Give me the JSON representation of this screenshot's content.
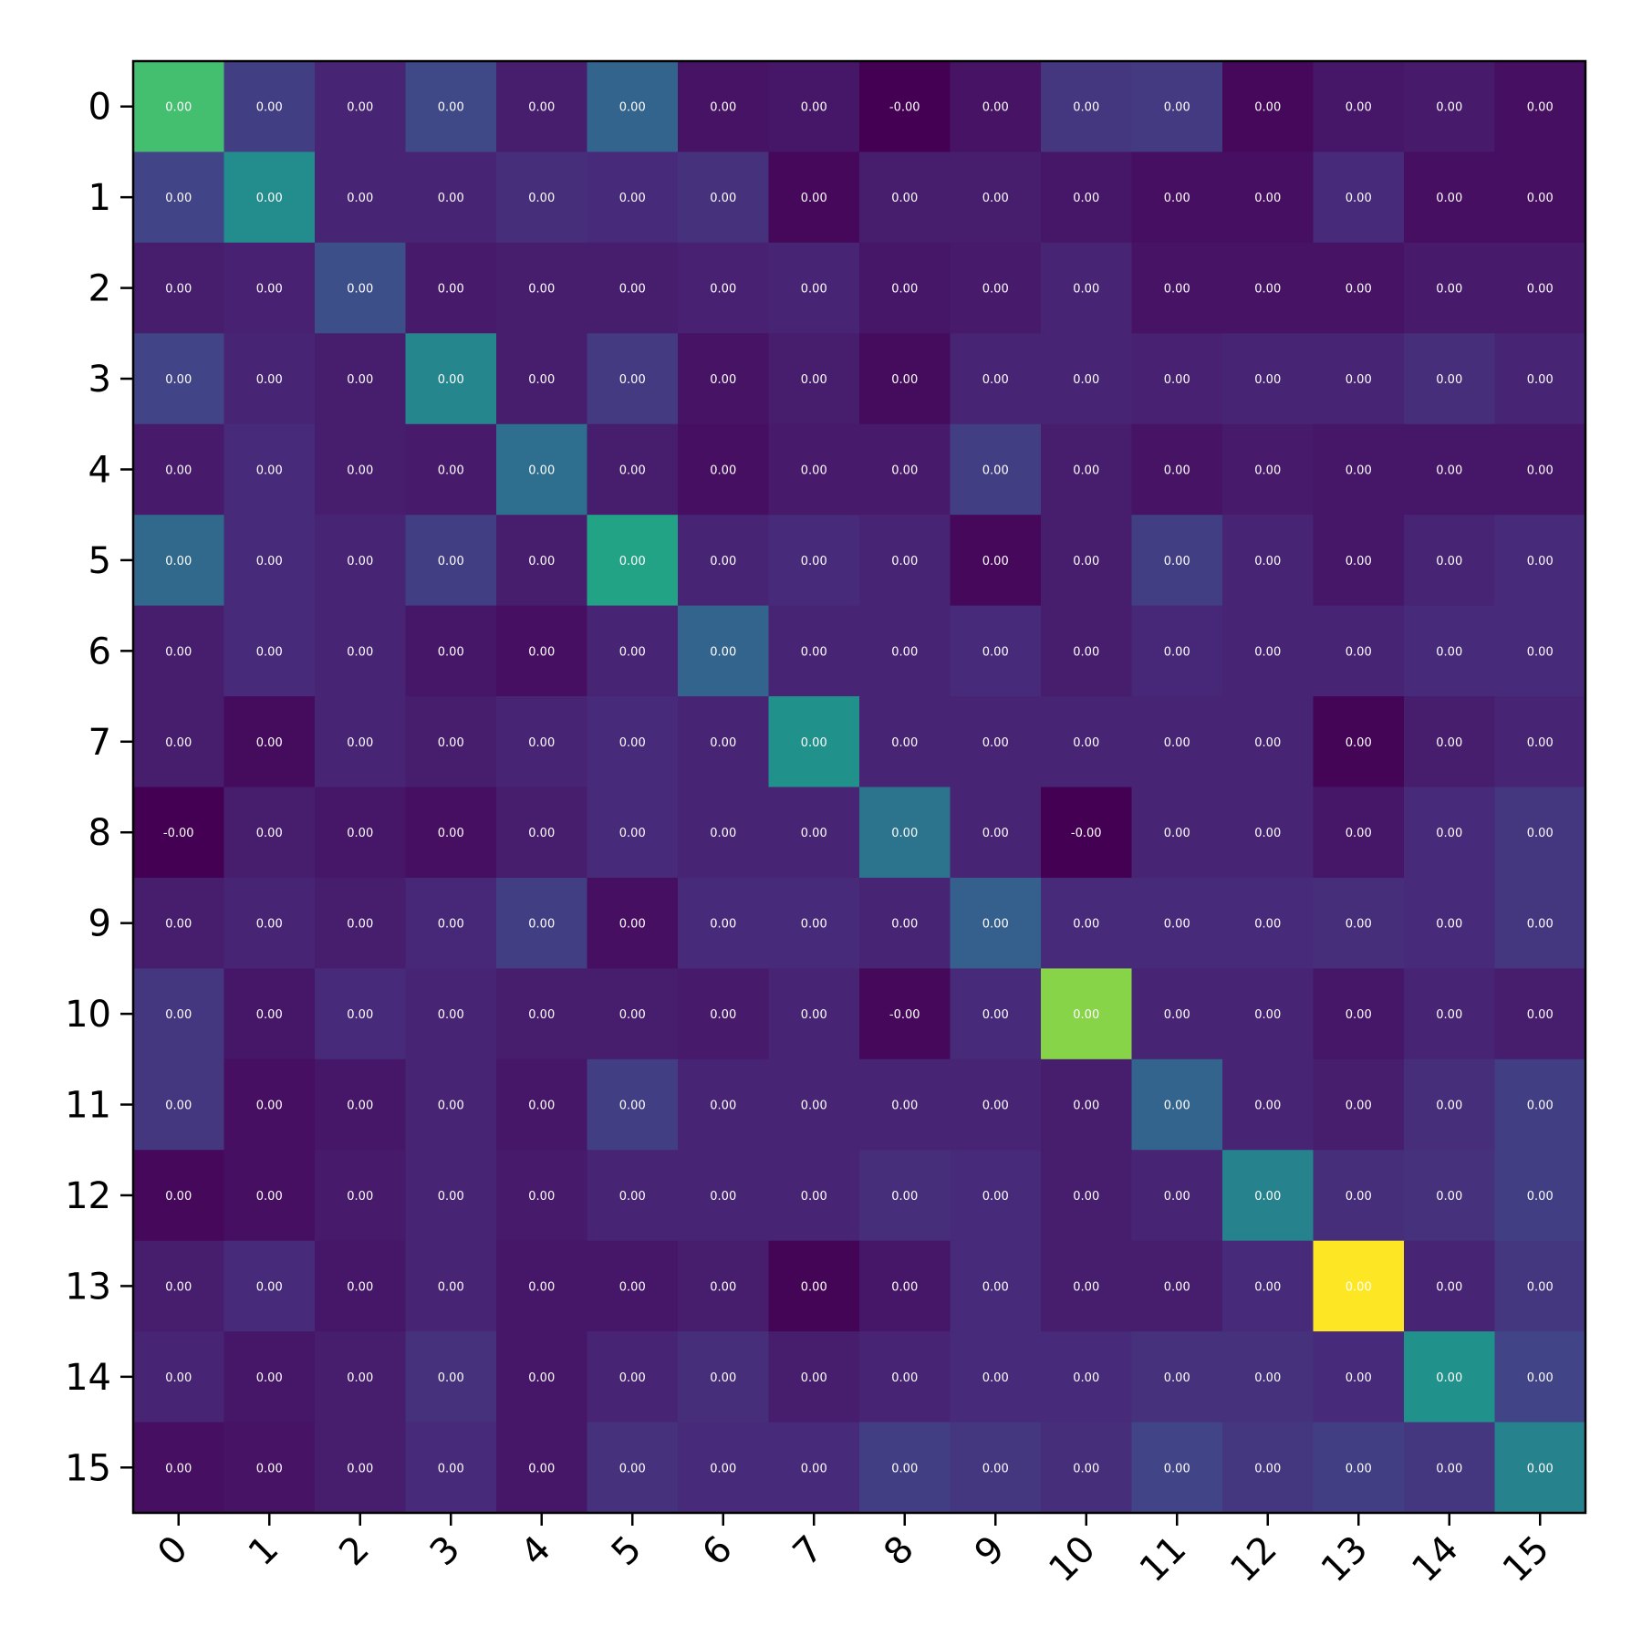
{
  "chart_data": {
    "type": "heatmap",
    "colormap": "viridis",
    "title": "",
    "xlabel": "",
    "ylabel": "",
    "grid": false,
    "x_categories": [
      "0",
      "1",
      "2",
      "3",
      "4",
      "5",
      "6",
      "7",
      "8",
      "9",
      "10",
      "11",
      "12",
      "13",
      "14",
      "15"
    ],
    "y_categories": [
      "0",
      "1",
      "2",
      "3",
      "4",
      "5",
      "6",
      "7",
      "8",
      "9",
      "10",
      "11",
      "12",
      "13",
      "14",
      "15"
    ],
    "value_range": [
      0,
      1
    ],
    "intensity": [
      [
        0.7,
        0.18,
        0.1,
        0.22,
        0.08,
        0.32,
        0.05,
        0.06,
        0.0,
        0.05,
        0.16,
        0.17,
        0.02,
        0.06,
        0.07,
        0.04
      ],
      [
        0.2,
        0.48,
        0.1,
        0.1,
        0.13,
        0.12,
        0.14,
        0.02,
        0.08,
        0.08,
        0.06,
        0.04,
        0.04,
        0.12,
        0.04,
        0.04
      ],
      [
        0.08,
        0.09,
        0.24,
        0.07,
        0.08,
        0.08,
        0.09,
        0.1,
        0.06,
        0.07,
        0.1,
        0.05,
        0.05,
        0.05,
        0.07,
        0.07
      ],
      [
        0.2,
        0.1,
        0.08,
        0.46,
        0.08,
        0.17,
        0.05,
        0.08,
        0.03,
        0.1,
        0.1,
        0.09,
        0.1,
        0.1,
        0.13,
        0.1
      ],
      [
        0.07,
        0.12,
        0.08,
        0.07,
        0.36,
        0.08,
        0.04,
        0.07,
        0.07,
        0.18,
        0.08,
        0.05,
        0.07,
        0.06,
        0.06,
        0.06
      ],
      [
        0.34,
        0.12,
        0.1,
        0.18,
        0.08,
        0.58,
        0.1,
        0.12,
        0.1,
        0.02,
        0.08,
        0.18,
        0.1,
        0.06,
        0.1,
        0.12
      ],
      [
        0.08,
        0.12,
        0.1,
        0.06,
        0.04,
        0.1,
        0.32,
        0.1,
        0.1,
        0.12,
        0.08,
        0.11,
        0.1,
        0.1,
        0.12,
        0.12
      ],
      [
        0.08,
        0.03,
        0.1,
        0.08,
        0.1,
        0.12,
        0.1,
        0.5,
        0.1,
        0.1,
        0.1,
        0.1,
        0.1,
        0.01,
        0.08,
        0.1
      ],
      [
        0.0,
        0.08,
        0.06,
        0.04,
        0.08,
        0.12,
        0.1,
        0.1,
        0.38,
        0.1,
        0.0,
        0.1,
        0.1,
        0.06,
        0.12,
        0.16
      ],
      [
        0.08,
        0.1,
        0.08,
        0.11,
        0.18,
        0.04,
        0.12,
        0.12,
        0.1,
        0.3,
        0.12,
        0.12,
        0.12,
        0.13,
        0.12,
        0.16
      ],
      [
        0.16,
        0.06,
        0.12,
        0.1,
        0.08,
        0.08,
        0.07,
        0.1,
        0.02,
        0.12,
        0.82,
        0.1,
        0.1,
        0.06,
        0.1,
        0.08
      ],
      [
        0.16,
        0.04,
        0.06,
        0.1,
        0.06,
        0.18,
        0.1,
        0.1,
        0.1,
        0.1,
        0.08,
        0.32,
        0.1,
        0.08,
        0.13,
        0.18
      ],
      [
        0.02,
        0.04,
        0.07,
        0.1,
        0.07,
        0.1,
        0.1,
        0.1,
        0.13,
        0.12,
        0.08,
        0.1,
        0.44,
        0.13,
        0.14,
        0.18
      ],
      [
        0.08,
        0.12,
        0.06,
        0.1,
        0.06,
        0.06,
        0.08,
        0.01,
        0.06,
        0.12,
        0.08,
        0.08,
        0.12,
        1.0,
        0.1,
        0.16
      ],
      [
        0.1,
        0.06,
        0.08,
        0.14,
        0.06,
        0.1,
        0.13,
        0.08,
        0.1,
        0.12,
        0.12,
        0.14,
        0.14,
        0.12,
        0.5,
        0.2
      ],
      [
        0.04,
        0.05,
        0.08,
        0.12,
        0.06,
        0.14,
        0.12,
        0.12,
        0.18,
        0.16,
        0.13,
        0.2,
        0.16,
        0.18,
        0.16,
        0.44
      ]
    ],
    "cell_labels": [
      [
        "0.00",
        "0.00",
        "0.00",
        "0.00",
        "0.00",
        "0.00",
        "0.00",
        "0.00",
        "-0.00",
        "0.00",
        "0.00",
        "0.00",
        "0.00",
        "0.00",
        "0.00",
        "0.00"
      ],
      [
        "0.00",
        "0.00",
        "0.00",
        "0.00",
        "0.00",
        "0.00",
        "0.00",
        "0.00",
        "0.00",
        "0.00",
        "0.00",
        "0.00",
        "0.00",
        "0.00",
        "0.00",
        "0.00"
      ],
      [
        "0.00",
        "0.00",
        "0.00",
        "0.00",
        "0.00",
        "0.00",
        "0.00",
        "0.00",
        "0.00",
        "0.00",
        "0.00",
        "0.00",
        "0.00",
        "0.00",
        "0.00",
        "0.00"
      ],
      [
        "0.00",
        "0.00",
        "0.00",
        "0.00",
        "0.00",
        "0.00",
        "0.00",
        "0.00",
        "0.00",
        "0.00",
        "0.00",
        "0.00",
        "0.00",
        "0.00",
        "0.00",
        "0.00"
      ],
      [
        "0.00",
        "0.00",
        "0.00",
        "0.00",
        "0.00",
        "0.00",
        "0.00",
        "0.00",
        "0.00",
        "0.00",
        "0.00",
        "0.00",
        "0.00",
        "0.00",
        "0.00",
        "0.00"
      ],
      [
        "0.00",
        "0.00",
        "0.00",
        "0.00",
        "0.00",
        "0.00",
        "0.00",
        "0.00",
        "0.00",
        "0.00",
        "0.00",
        "0.00",
        "0.00",
        "0.00",
        "0.00",
        "0.00"
      ],
      [
        "0.00",
        "0.00",
        "0.00",
        "0.00",
        "0.00",
        "0.00",
        "0.00",
        "0.00",
        "0.00",
        "0.00",
        "0.00",
        "0.00",
        "0.00",
        "0.00",
        "0.00",
        "0.00"
      ],
      [
        "0.00",
        "0.00",
        "0.00",
        "0.00",
        "0.00",
        "0.00",
        "0.00",
        "0.00",
        "0.00",
        "0.00",
        "0.00",
        "0.00",
        "0.00",
        "0.00",
        "0.00",
        "0.00"
      ],
      [
        "-0.00",
        "0.00",
        "0.00",
        "0.00",
        "0.00",
        "0.00",
        "0.00",
        "0.00",
        "0.00",
        "0.00",
        "-0.00",
        "0.00",
        "0.00",
        "0.00",
        "0.00",
        "0.00"
      ],
      [
        "0.00",
        "0.00",
        "0.00",
        "0.00",
        "0.00",
        "0.00",
        "0.00",
        "0.00",
        "0.00",
        "0.00",
        "0.00",
        "0.00",
        "0.00",
        "0.00",
        "0.00",
        "0.00"
      ],
      [
        "0.00",
        "0.00",
        "0.00",
        "0.00",
        "0.00",
        "0.00",
        "0.00",
        "0.00",
        "-0.00",
        "0.00",
        "0.00",
        "0.00",
        "0.00",
        "0.00",
        "0.00",
        "0.00"
      ],
      [
        "0.00",
        "0.00",
        "0.00",
        "0.00",
        "0.00",
        "0.00",
        "0.00",
        "0.00",
        "0.00",
        "0.00",
        "0.00",
        "0.00",
        "0.00",
        "0.00",
        "0.00",
        "0.00"
      ],
      [
        "0.00",
        "0.00",
        "0.00",
        "0.00",
        "0.00",
        "0.00",
        "0.00",
        "0.00",
        "0.00",
        "0.00",
        "0.00",
        "0.00",
        "0.00",
        "0.00",
        "0.00",
        "0.00"
      ],
      [
        "0.00",
        "0.00",
        "0.00",
        "0.00",
        "0.00",
        "0.00",
        "0.00",
        "0.00",
        "0.00",
        "0.00",
        "0.00",
        "0.00",
        "0.00",
        "0.00",
        "0.00",
        "0.00"
      ],
      [
        "0.00",
        "0.00",
        "0.00",
        "0.00",
        "0.00",
        "0.00",
        "0.00",
        "0.00",
        "0.00",
        "0.00",
        "0.00",
        "0.00",
        "0.00",
        "0.00",
        "0.00",
        "0.00"
      ],
      [
        "0.00",
        "0.00",
        "0.00",
        "0.00",
        "0.00",
        "0.00",
        "0.00",
        "0.00",
        "0.00",
        "0.00",
        "0.00",
        "0.00",
        "0.00",
        "0.00",
        "0.00",
        "0.00"
      ]
    ]
  }
}
